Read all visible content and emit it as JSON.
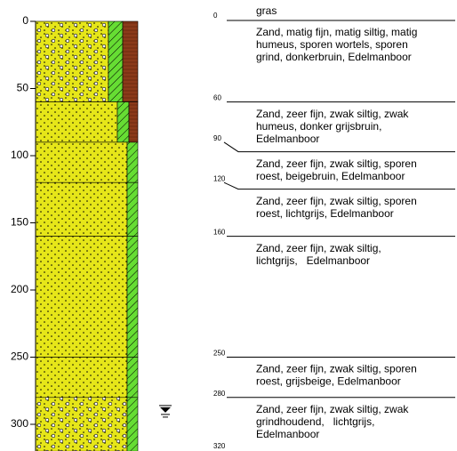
{
  "depth_axis": {
    "ylim": [
      0,
      320
    ],
    "yticks": [
      0,
      50,
      100,
      150,
      200,
      250,
      300
    ]
  },
  "surface": "gras",
  "groundwater_depth": 290,
  "layers": [
    {
      "top": 0,
      "bottom": 60,
      "description": [
        "Zand, matig fijn, matig siltig, matig",
        "humeus, sporen wortels, sporen",
        "grind, donkerbruin, Edelmanboor"
      ]
    },
    {
      "top": 60,
      "bottom": 90,
      "description": [
        "Zand, zeer fijn, zwak siltig, zwak",
        "humeus, donker grijsbruin,",
        "Edelmanboor"
      ]
    },
    {
      "top": 90,
      "bottom": 120,
      "description": [
        "Zand, zeer fijn, zwak siltig, sporen",
        "roest, beigebruin, Edelmanboor"
      ]
    },
    {
      "top": 120,
      "bottom": 160,
      "description": [
        "Zand, zeer fijn, zwak siltig, sporen",
        "roest, lichtgrijs, Edelmanboor"
      ]
    },
    {
      "top": 160,
      "bottom": 250,
      "description": [
        "Zand, zeer fijn, zwak siltig,",
        "lichtgrijs,   Edelmanboor"
      ]
    },
    {
      "top": 250,
      "bottom": 280,
      "description": [
        "Zand, zeer fijn, zwak siltig, sporen",
        "roest, grijsbeige, Edelmanboor"
      ]
    },
    {
      "top": 280,
      "bottom": 320,
      "description": [
        "Zand, zeer fijn, zwak siltig, zwak",
        "grindhoudend,   lichtgrijs,",
        "Edelmanboor"
      ]
    }
  ]
}
